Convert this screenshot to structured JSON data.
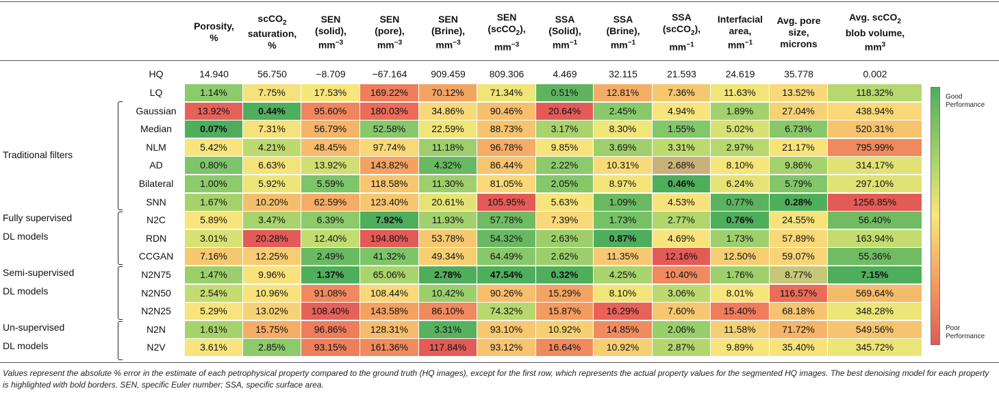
{
  "columns": [
    {
      "l1": "Porosity,",
      "l2": "%",
      "l3": ""
    },
    {
      "l1": "scCO",
      "s1": "2",
      "l2": "saturation,",
      "l3": "%"
    },
    {
      "l1": "SEN",
      "l2": "(solid),",
      "l3": "mm",
      "p3": "−3"
    },
    {
      "l1": "SEN",
      "l2": "(pore),",
      "l3": "mm",
      "p3": "−3"
    },
    {
      "l1": "SEN",
      "l2": "(Brine),",
      "l3": "mm",
      "p3": "−3"
    },
    {
      "l1": "SEN",
      "l2": "(scCO",
      "s2": "2",
      "l2b": "),",
      "l3": "mm",
      "p3": "−3"
    },
    {
      "l1": "SSA",
      "l2": "(Solid),",
      "l3": "mm",
      "p3": "−1"
    },
    {
      "l1": "SSA",
      "l2": "(Brine),",
      "l3": "mm",
      "p3": "−1"
    },
    {
      "l1": "SSA",
      "l2": "(scCO",
      "s2": "2",
      "l2b": "),",
      "l3": "mm",
      "p3": "−1"
    },
    {
      "l1": "Interfacial",
      "l2": "area,",
      "l3": "mm",
      "p3": "−1"
    },
    {
      "l1": "Avg. pore",
      "l2": "size,",
      "l3": "microns"
    },
    {
      "l1": "Avg. scCO",
      "s1": "2",
      "l2": "blob volume,",
      "l3": "mm",
      "p3": "3"
    }
  ],
  "groups": [
    {
      "line1": "Traditional filters",
      "line2": ""
    },
    {
      "line1": "Fully supervised",
      "line2": "DL models"
    },
    {
      "line1": "Semi-supervised",
      "line2": "DL models"
    },
    {
      "line1": "Un-supervised",
      "line2": "DL models"
    }
  ],
  "hq": {
    "label": "HQ",
    "values": [
      "14.940",
      "56.750",
      "−8.709",
      "−67.164",
      "909.459",
      "809.306",
      "4.469",
      "32.115",
      "21.593",
      "24.619",
      "35.778",
      "0.002"
    ]
  },
  "rows": [
    {
      "label": "LQ",
      "values": [
        "1.14%",
        "7.75%",
        "17.53%",
        "169.22%",
        "70.12%",
        "71.34%",
        "0.51%",
        "12.81%",
        "7.36%",
        "11.63%",
        "13.52%",
        "118.32%"
      ],
      "colors": [
        "#8dca6b",
        "#f5e27c",
        "#f7e77a",
        "#ef7f5c",
        "#f2a463",
        "#efe578",
        "#60b460",
        "#f4ad67",
        "#f5c870",
        "#f0e578",
        "#f8d878",
        "#b6d86f"
      ],
      "best": []
    },
    {
      "label": "Gaussian",
      "values": [
        "13.92%",
        "0.44%",
        "95.60%",
        "180.03%",
        "34.86%",
        "90.46%",
        "20.64%",
        "2.45%",
        "4.94%",
        "1.89%",
        "27.04%",
        "438.94%"
      ],
      "colors": [
        "#e5625a",
        "#4fae5c",
        "#f0865e",
        "#ea6c59",
        "#f8d878",
        "#f7be6e",
        "#e35b57",
        "#8ac96b",
        "#f8e47c",
        "#a3d16d",
        "#f6d277",
        "#f8d878"
      ],
      "best": [
        1
      ]
    },
    {
      "label": "Median",
      "values": [
        "0.07%",
        "7.31%",
        "56.79%",
        "52.58%",
        "22.59%",
        "88.73%",
        "3.17%",
        "8.30%",
        "1.55%",
        "5.02%",
        "6.73%",
        "520.31%"
      ],
      "colors": [
        "#4fae5c",
        "#f5e27c",
        "#f4b469",
        "#88c86a",
        "#efe578",
        "#f6c470",
        "#a9d36c",
        "#efe578",
        "#84c66a",
        "#d7e174",
        "#89c86a",
        "#f6c36f"
      ],
      "best": [
        0
      ]
    },
    {
      "label": "NLM",
      "values": [
        "5.42%",
        "4.21%",
        "48.45%",
        "97.74%",
        "11.18%",
        "96.78%",
        "9.85%",
        "3.69%",
        "3.31%",
        "2.97%",
        "21.17%",
        "795.99%"
      ],
      "colors": [
        "#f8e47c",
        "#bcda6e",
        "#f7bc6c",
        "#f8d878",
        "#9dcf6c",
        "#f4ad67",
        "#f8e47c",
        "#9ecf6c",
        "#bcda6f",
        "#b7d86e",
        "#f8e37b",
        "#ef8a5f"
      ],
      "best": []
    },
    {
      "label": "AD",
      "values": [
        "0.80%",
        "6.63%",
        "13.92%",
        "143.82%",
        "4.32%",
        "86.44%",
        "2.22%",
        "10.31%",
        "2.68%",
        "8.10%",
        "9.86%",
        "314.17%"
      ],
      "colors": [
        "#7dc46a",
        "#f4e27b",
        "#cfdf72",
        "#f3a262",
        "#69b862",
        "#f6c570",
        "#8dca6b",
        "#f8da79",
        "#c9b27a",
        "#f5e57a",
        "#a6d26d",
        "#e1e275"
      ],
      "best": []
    },
    {
      "label": "Bilateral",
      "values": [
        "1.00%",
        "5.92%",
        "5.59%",
        "118.58%",
        "11.30%",
        "81.05%",
        "2.05%",
        "8.97%",
        "0.46%",
        "6.24%",
        "5.79%",
        "297.10%"
      ],
      "colors": [
        "#8dca6b",
        "#eee57a",
        "#7dc46a",
        "#f6c670",
        "#9ecf6c",
        "#f8d878",
        "#86c76a",
        "#f3e47a",
        "#4fae5c",
        "#e6e376",
        "#83c66a",
        "#dfe275"
      ],
      "best": [
        8
      ]
    },
    {
      "label": "SNN",
      "values": [
        "1.67%",
        "10.20%",
        "62.59%",
        "123.40%",
        "20.61%",
        "105.95%",
        "5.63%",
        "1.09%",
        "4.53%",
        "0.77%",
        "0.28%",
        "1256.85%"
      ],
      "colors": [
        "#a6d26d",
        "#f4bf6d",
        "#f4ac66",
        "#f6c770",
        "#e6e376",
        "#e35b57",
        "#f8e47c",
        "#6bb962",
        "#f8e27b",
        "#5bb25f",
        "#4fae5c",
        "#e35b57"
      ],
      "best": [
        10
      ]
    },
    {
      "label": "N2C",
      "values": [
        "5.89%",
        "3.47%",
        "6.39%",
        "7.92%",
        "11.93%",
        "57.78%",
        "7.39%",
        "1.73%",
        "2.77%",
        "0.76%",
        "24.55%",
        "56.40%"
      ],
      "colors": [
        "#f8e47c",
        "#a9d36c",
        "#8dca6b",
        "#4fae5c",
        "#a3d16d",
        "#70bb63",
        "#f8d878",
        "#76c066",
        "#b2d56e",
        "#4fae5c",
        "#f8e37b",
        "#71bb63"
      ],
      "best": [
        3,
        9
      ]
    },
    {
      "label": "RDN",
      "values": [
        "3.01%",
        "20.28%",
        "12.40%",
        "194.80%",
        "53.78%",
        "54.32%",
        "2.63%",
        "0.87%",
        "4.69%",
        "1.73%",
        "57.89%",
        "163.94%"
      ],
      "colors": [
        "#d7e174",
        "#e35b57",
        "#c1dc70",
        "#e35b57",
        "#f5c870",
        "#6ab962",
        "#9ccf6c",
        "#4fae5c",
        "#f8e47c",
        "#9ecf6c",
        "#f8d878",
        "#c3dc70"
      ],
      "best": [
        7
      ]
    },
    {
      "label": "CCGAN",
      "values": [
        "7.16%",
        "12.25%",
        "2.49%",
        "41.32%",
        "49.34%",
        "64.49%",
        "2.62%",
        "11.35%",
        "12.16%",
        "12.50%",
        "59.07%",
        "55.36%"
      ],
      "colors": [
        "#f5c870",
        "#f6cc74",
        "#6bb962",
        "#7ec56a",
        "#f6cf73",
        "#89c86a",
        "#9ccf6c",
        "#f6c871",
        "#e35b57",
        "#f5cd73",
        "#f7d477",
        "#71bb63"
      ],
      "best": []
    },
    {
      "label": "N2N75",
      "values": [
        "1.47%",
        "9.96%",
        "1.37%",
        "65.06%",
        "2.78%",
        "47.54%",
        "0.32%",
        "4.25%",
        "10.40%",
        "1.76%",
        "8.77%",
        "7.15%"
      ],
      "colors": [
        "#9ccf6c",
        "#f8e27b",
        "#4fae5c",
        "#a9d36c",
        "#4fae5c",
        "#4fae5c",
        "#4fae5c",
        "#a9d36c",
        "#f08b60",
        "#9ecf6c",
        "#c7c77a",
        "#4fae5c"
      ],
      "best": [
        2,
        4,
        5,
        6,
        11
      ]
    },
    {
      "label": "N2N50",
      "values": [
        "2.54%",
        "10.96%",
        "91.08%",
        "108.44%",
        "10.42%",
        "90.26%",
        "15.29%",
        "8.10%",
        "3.06%",
        "8.01%",
        "116.57%",
        "569.64%"
      ],
      "colors": [
        "#c3dc70",
        "#f8e27b",
        "#ef8a5f",
        "#f8d878",
        "#9ccf6c",
        "#f7be6e",
        "#f2a463",
        "#f0e578",
        "#bcda6f",
        "#f8e47c",
        "#ea6c59",
        "#f4bb6b"
      ],
      "best": []
    },
    {
      "label": "N2N25",
      "values": [
        "5.29%",
        "13.02%",
        "108.40%",
        "143.58%",
        "86.10%",
        "74.32%",
        "15.87%",
        "16.29%",
        "7.60%",
        "15.40%",
        "68.18%",
        "348.28%"
      ],
      "colors": [
        "#f8e47c",
        "#f6d277",
        "#e5625a",
        "#f3a262",
        "#ef895f",
        "#b7d86e",
        "#f29a60",
        "#e8625a",
        "#f5c870",
        "#f07c5b",
        "#f6c470",
        "#ece577"
      ],
      "best": []
    },
    {
      "label": "N2N",
      "values": [
        "1.61%",
        "15.75%",
        "96.86%",
        "128.31%",
        "3.31%",
        "93.10%",
        "10.92%",
        "14.85%",
        "2.06%",
        "11.58%",
        "71.72%",
        "549.56%"
      ],
      "colors": [
        "#a6d26d",
        "#f4ad67",
        "#ee7d5c",
        "#f4bc6c",
        "#58b15e",
        "#f7c870",
        "#f6cf73",
        "#f08b60",
        "#98ce6b",
        "#f4cf73",
        "#f4b469",
        "#f6c470"
      ],
      "best": []
    },
    {
      "label": "N2V",
      "values": [
        "3.61%",
        "2.85%",
        "93.15%",
        "161.36%",
        "117.84%",
        "93.12%",
        "16.64%",
        "10.92%",
        "2.87%",
        "9.89%",
        "35.40%",
        "345.72%"
      ],
      "colors": [
        "#f8e47c",
        "#8dca6b",
        "#ef7f5c",
        "#f08b60",
        "#e35b57",
        "#f6c36f",
        "#ef8a5f",
        "#f6cf73",
        "#b4d66f",
        "#f8e47c",
        "#f8e37b",
        "#ece577"
      ],
      "best": []
    }
  ],
  "legend": {
    "top_line1": "Good",
    "top_line2": "Performance",
    "bottom_line1": "Poor",
    "bottom_line2": "Performance",
    "top_color": "#4caf5d",
    "bottom_color": "#e05a55"
  },
  "caption": "Values represent the absolute % error in the estimate of each petrophysical property compared to the ground truth (HQ images), except for the first row, which represents the actual property values for the segmented HQ images. The best denoising model for each property is highlighted with bold borders. SEN, specific Euler number; SSA, specific surface area."
}
